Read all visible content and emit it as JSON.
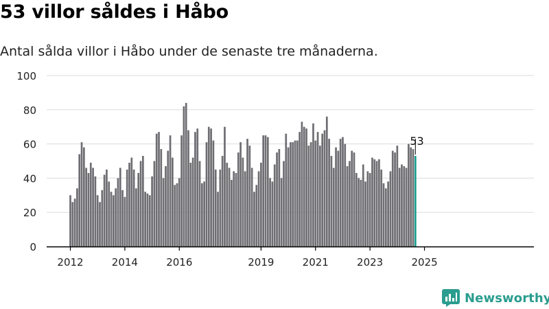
{
  "header": {
    "title": "53 villor såldes i Håbo",
    "subtitle": "Antal sålda villor i Håbo under de senaste tre månaderna."
  },
  "brand": {
    "name": "Newsworthy",
    "logo_icon": "newsworthy-logo-icon"
  },
  "colors": {
    "bar": "#6e6d72",
    "highlight": "#1a9e8f",
    "grid": "#dcdcdc",
    "axis": "#000000",
    "brand": "#2a9d8f"
  },
  "chart_data": {
    "type": "bar",
    "title": "53 villor såldes i Håbo",
    "subtitle": "Antal sålda villor i Håbo under de senaste tre månaderna.",
    "xlabel": "",
    "ylabel": "",
    "ylim": [
      0,
      100
    ],
    "yticks": [
      0,
      20,
      40,
      60,
      80,
      100
    ],
    "xticks": [
      "2012",
      "2014",
      "2016",
      "2019",
      "2021",
      "2023",
      "2025"
    ],
    "grid": true,
    "legend": "none",
    "start_month": "2012-01",
    "end_month": "2025-01",
    "values": [
      30,
      26,
      28,
      34,
      54,
      61,
      58,
      46,
      43,
      49,
      46,
      41,
      30,
      26,
      33,
      42,
      45,
      38,
      32,
      30,
      34,
      40,
      46,
      33,
      29,
      45,
      49,
      52,
      45,
      34,
      43,
      50,
      53,
      32,
      31,
      30,
      41,
      50,
      66,
      67,
      57,
      40,
      47,
      56,
      65,
      52,
      36,
      37,
      40,
      65,
      82,
      84,
      68,
      49,
      52,
      67,
      69,
      50,
      37,
      38,
      61,
      70,
      69,
      62,
      45,
      32,
      45,
      53,
      70,
      49,
      46,
      39,
      44,
      43,
      55,
      61,
      52,
      44,
      63,
      59,
      46,
      32,
      36,
      44,
      49,
      65,
      65,
      64,
      40,
      38,
      48,
      55,
      57,
      40,
      50,
      66,
      58,
      61,
      61,
      62,
      62,
      67,
      73,
      70,
      69,
      59,
      61,
      72,
      62,
      67,
      59,
      66,
      68,
      76,
      63,
      53,
      46,
      58,
      56,
      63,
      64,
      60,
      47,
      50,
      56,
      55,
      43,
      40,
      39,
      48,
      38,
      44,
      43,
      52,
      51,
      50,
      51,
      45,
      37,
      34,
      38,
      44,
      56,
      55,
      59,
      46,
      48,
      47,
      46,
      60,
      58,
      57,
      53
    ],
    "highlight_last": true,
    "annotation": {
      "text": "53",
      "target": "last"
    }
  }
}
